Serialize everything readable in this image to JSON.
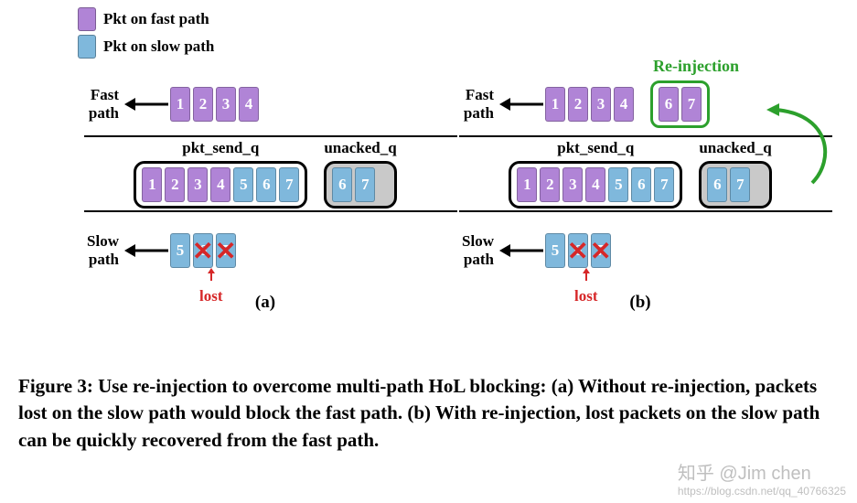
{
  "colors": {
    "fast": "#b084d6",
    "slow": "#7fb8dc",
    "lost": "#d62728",
    "reinj": "#2ca02c",
    "gray": "#c9c9c9",
    "black": "#000000",
    "bg": "#ffffff"
  },
  "legend": {
    "fast": "Pkt on fast path",
    "slow": "Pkt on slow path"
  },
  "labels": {
    "fast_path": "Fast path",
    "slow_path": "Slow path",
    "pkt_send_q": "pkt_send_q",
    "unacked_q": "unacked_q",
    "lost": "lost",
    "reinjection": "Re-injection",
    "panel_a": "(a)",
    "panel_b": "(b)"
  },
  "panel_a": {
    "fast_path_pkts": [
      "1",
      "2",
      "3",
      "4"
    ],
    "fast_path_colors": [
      "fast",
      "fast",
      "fast",
      "fast"
    ],
    "pkt_send_q": [
      "1",
      "2",
      "3",
      "4",
      "5",
      "6",
      "7"
    ],
    "pkt_send_q_colors": [
      "fast",
      "fast",
      "fast",
      "fast",
      "slow",
      "slow",
      "slow"
    ],
    "unacked_q": [
      "6",
      "7"
    ],
    "unacked_q_colors": [
      "slow",
      "slow"
    ],
    "slow_path_pkts": [
      "5",
      "6",
      "7"
    ],
    "slow_path_colors": [
      "slow",
      "slow",
      "slow"
    ],
    "lost_indices": [
      1,
      2
    ]
  },
  "panel_b": {
    "fast_path_pkts": [
      "1",
      "2",
      "3",
      "4"
    ],
    "fast_path_colors": [
      "fast",
      "fast",
      "fast",
      "fast"
    ],
    "reinjection_pkts": [
      "6",
      "7"
    ],
    "reinjection_colors": [
      "fast",
      "fast"
    ],
    "pkt_send_q": [
      "1",
      "2",
      "3",
      "4",
      "5",
      "6",
      "7"
    ],
    "pkt_send_q_colors": [
      "fast",
      "fast",
      "fast",
      "fast",
      "slow",
      "slow",
      "slow"
    ],
    "unacked_q": [
      "6",
      "7"
    ],
    "unacked_q_colors": [
      "slow",
      "slow"
    ],
    "slow_path_pkts": [
      "5",
      "6",
      "7"
    ],
    "slow_path_colors": [
      "slow",
      "slow",
      "slow"
    ],
    "lost_indices": [
      1,
      2
    ]
  },
  "caption": {
    "figure_label": "Figure 3:",
    "text": "Use re-injection to overcome multi-path HoL blocking: (a) Without re-injection, packets lost on the slow path would block the fast path. (b) With re-injection, lost packets on the slow path can be quickly recovered from the fast path."
  },
  "watermark": {
    "line1": "知乎 @Jim chen",
    "line2": "https://blog.csdn.net/qq_40766325"
  },
  "fonts": {
    "body_size": 17,
    "caption_size": 21
  }
}
